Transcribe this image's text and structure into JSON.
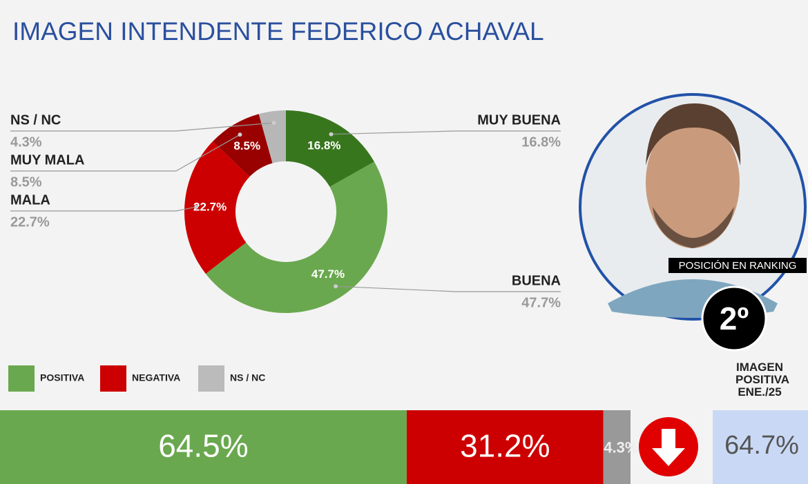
{
  "title": "IMAGEN INTENDENTE  FEDERICO ACHAVAL",
  "chart_data": [
    {
      "type": "donut",
      "categories": [
        "MUY BUENA",
        "BUENA",
        "MALA",
        "MUY MALA",
        "NS / NC"
      ],
      "values": [
        16.8,
        47.7,
        22.7,
        8.5,
        4.3
      ],
      "value_labels": [
        "16.8%",
        "47.7%",
        "22.7%",
        "8.5%",
        "4.3%"
      ],
      "colors": [
        "#38761d",
        "#6aa84f",
        "#cc0000",
        "#990000",
        "#b7b7b7"
      ]
    },
    {
      "type": "stacked-bar",
      "series": [
        {
          "name": "POSITIVA",
          "color": "#6aa84f",
          "values": [
            64.5
          ],
          "value_labels": [
            "64.5%"
          ]
        },
        {
          "name": "NEGATIVA",
          "color": "#cc0000",
          "values": [
            31.2
          ],
          "value_labels": [
            "31.2%"
          ]
        },
        {
          "name": "NS / NC",
          "color": "#999999",
          "values": [
            4.3
          ],
          "value_labels": [
            "4.3%"
          ]
        }
      ],
      "xlim": [
        0,
        100
      ]
    }
  ],
  "ranking": {
    "label": "POSICIÓN EN RANKING",
    "value": "2º"
  },
  "comparison": {
    "title": "IMAGEN POSITIVA ENE./25",
    "value": "64.7%"
  }
}
